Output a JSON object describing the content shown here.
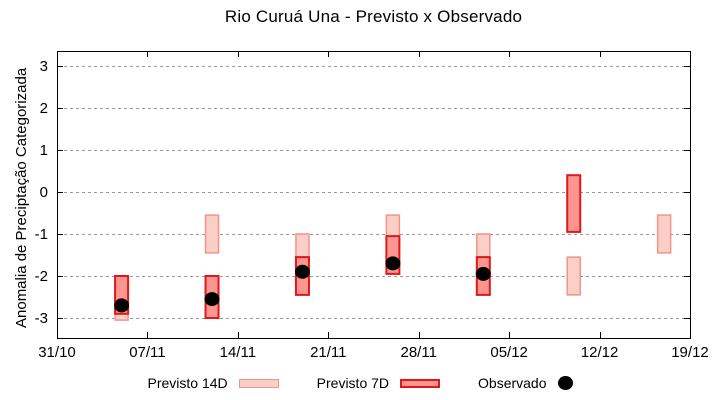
{
  "chart_data": {
    "type": "range-bar",
    "title": "Rio Curuá Una - Previsto x Observado",
    "ylabel": "Anomalia de Preciptação Categorizada",
    "xlabel": "",
    "x_tick_labels": [
      "31/10",
      "07/11",
      "14/11",
      "21/11",
      "28/11",
      "05/12",
      "12/12",
      "19/12"
    ],
    "x_tick_days": [
      0,
      7,
      14,
      21,
      28,
      35,
      42,
      49
    ],
    "x_range_days": [
      0,
      49
    ],
    "yticks": [
      3,
      2,
      1,
      0,
      -1,
      -2,
      -3
    ],
    "ylim": [
      -3.48,
      3.36
    ],
    "grid": "horizontal dashed lines at integer y values",
    "legend_position": "centered below plot",
    "series": [
      {
        "name": "Previsto 14D",
        "type": "range",
        "fill": "#facfc8",
        "border": "#f29489",
        "points": [
          {
            "date": "05/11",
            "day": 5,
            "high": -2.15,
            "low": -3.05
          },
          {
            "date": "12/11",
            "day": 12,
            "high": -0.55,
            "low": -1.45
          },
          {
            "date": "19/11",
            "day": 19,
            "high": -1.0,
            "low": -1.9
          },
          {
            "date": "26/11",
            "day": 26,
            "high": -0.55,
            "low": -1.45
          },
          {
            "date": "03/12",
            "day": 33,
            "high": -1.0,
            "low": -1.9
          },
          {
            "date": "10/12",
            "day": 40,
            "high": -1.55,
            "low": -2.45
          },
          {
            "date": "17/12",
            "day": 47,
            "high": -0.55,
            "low": -1.45
          }
        ]
      },
      {
        "name": "Previsto 7D",
        "type": "range",
        "fill": "#fd9691",
        "border": "#e01818",
        "points": [
          {
            "date": "05/11",
            "day": 5,
            "high": -2.0,
            "low": -2.9
          },
          {
            "date": "12/11",
            "day": 12,
            "high": -2.0,
            "low": -3.0
          },
          {
            "date": "19/11",
            "day": 19,
            "high": -1.55,
            "low": -2.45
          },
          {
            "date": "26/11",
            "day": 26,
            "high": -1.05,
            "low": -1.95
          },
          {
            "date": "03/12",
            "day": 33,
            "high": -1.55,
            "low": -2.45
          },
          {
            "date": "10/12",
            "day": 40,
            "high": 0.4,
            "low": -0.95
          }
        ]
      },
      {
        "name": "Observado",
        "type": "scatter",
        "color": "#000000",
        "points": [
          {
            "date": "05/11",
            "day": 5,
            "value": -2.7
          },
          {
            "date": "12/11",
            "day": 12,
            "value": -2.55
          },
          {
            "date": "19/11",
            "day": 19,
            "value": -1.9
          },
          {
            "date": "26/11",
            "day": 26,
            "value": -1.7
          },
          {
            "date": "03/12",
            "day": 33,
            "value": -1.95
          }
        ]
      }
    ]
  },
  "colors": {
    "background": "#ffffff",
    "axis": "#000000",
    "grid": "#999999",
    "previsto14d_fill": "#facfc8",
    "previsto14d_border": "#f29489",
    "previsto7d_fill": "#fd9691",
    "previsto7d_border": "#e01818",
    "observado_dot": "#000000"
  }
}
